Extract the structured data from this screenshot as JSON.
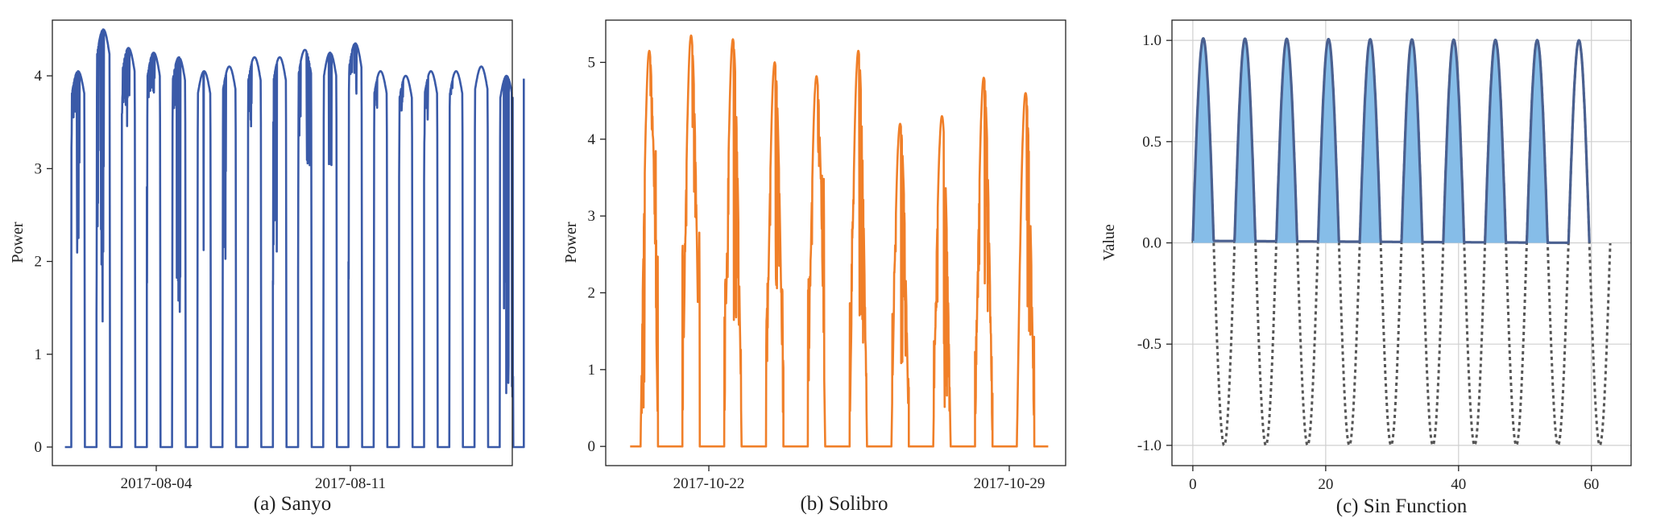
{
  "chart_data": [
    {
      "type": "line",
      "title": "(a) Sanyo",
      "xlabel": "",
      "ylabel": "Power",
      "x_tick_labels": [
        "2017-08-04",
        "2017-08-11"
      ],
      "y_ticks": [
        0,
        1,
        2,
        3,
        4
      ],
      "ylim": [
        -0.2,
        4.6
      ],
      "xlim": [
        "2017-07-30 12:00",
        "2017-08-17 18:00"
      ],
      "grid": false,
      "series": [
        {
          "color": "#3a5aa8",
          "x": [
            "2017-07-31 08:00",
            "2017-07-31 12:00",
            "2017-07-31 16:00",
            "2017-08-01 08:00",
            "2017-08-01 12:00",
            "2017-08-01 16:00",
            "2017-08-02 08:00",
            "2017-08-02 12:00",
            "2017-08-02 16:00",
            "2017-08-03 08:00",
            "2017-08-03 12:00",
            "2017-08-03 16:00",
            "2017-08-04 08:00",
            "2017-08-04 12:00",
            "2017-08-04 16:00",
            "2017-08-05 08:00",
            "2017-08-05 12:00",
            "2017-08-05 16:00",
            "2017-08-06 08:00",
            "2017-08-06 12:00",
            "2017-08-06 16:00",
            "2017-08-07 08:00",
            "2017-08-07 12:00",
            "2017-08-07 16:00",
            "2017-08-08 08:00",
            "2017-08-08 12:00",
            "2017-08-08 16:00",
            "2017-08-09 08:00",
            "2017-08-09 12:00",
            "2017-08-09 16:00",
            "2017-08-10 08:00",
            "2017-08-10 12:00",
            "2017-08-10 16:00",
            "2017-08-11 08:00",
            "2017-08-11 12:00",
            "2017-08-11 16:00",
            "2017-08-12 08:00",
            "2017-08-12 12:00",
            "2017-08-12 16:00",
            "2017-08-13 08:00",
            "2017-08-13 12:00",
            "2017-08-13 16:00",
            "2017-08-14 08:00",
            "2017-08-14 12:00",
            "2017-08-14 16:00",
            "2017-08-15 08:00",
            "2017-08-15 12:00",
            "2017-08-15 16:00",
            "2017-08-16 08:00",
            "2017-08-16 12:00",
            "2017-08-16 16:00",
            "2017-08-17 08:00",
            "2017-08-17 12:00"
          ],
          "y": [
            3.45,
            1.9,
            4.05,
            1.85,
            1.2,
            4.5,
            3.6,
            3.4,
            4.3,
            3.7,
            3.75,
            4.25,
            3.65,
            1.45,
            4.2,
            4.0,
            1.5,
            4.05,
            1.7,
            3.9,
            4.1,
            3.4,
            4.2,
            4.2,
            2.05,
            4.2,
            4.2,
            2.85,
            4.28,
            3.0,
            4.2,
            3.0,
            4.25,
            4.0,
            3.8,
            4.35,
            3.6,
            3.9,
            4.05,
            3.6,
            3.85,
            4.0,
            3.5,
            3.9,
            4.05,
            3.8,
            3.9,
            4.05,
            3.9,
            4.1,
            4.0,
            4.0,
            0.0
          ]
        }
      ]
    },
    {
      "type": "line",
      "title": "(b) Solibro",
      "xlabel": "",
      "ylabel": "Power",
      "x_tick_labels": [
        "2017-10-22",
        "2017-10-29"
      ],
      "y_ticks": [
        0,
        1,
        2,
        3,
        4,
        5
      ],
      "ylim": [
        -0.25,
        5.55
      ],
      "xlim": [
        "2017-10-19 12:00",
        "2017-10-30 12:00"
      ],
      "grid": false,
      "series": [
        {
          "color": "#f07f28",
          "x": [
            "2017-10-20 09:00",
            "2017-10-20 12:00",
            "2017-10-20 15:00",
            "2017-10-21 09:00",
            "2017-10-21 12:00",
            "2017-10-21 15:00",
            "2017-10-22 09:00",
            "2017-10-22 12:00",
            "2017-10-22 15:00",
            "2017-10-23 09:00",
            "2017-10-23 12:00",
            "2017-10-23 15:00",
            "2017-10-24 09:00",
            "2017-10-24 12:00",
            "2017-10-24 15:00",
            "2017-10-25 09:00",
            "2017-10-25 12:00",
            "2017-10-25 15:00",
            "2017-10-26 09:00",
            "2017-10-26 12:00",
            "2017-10-26 15:00",
            "2017-10-27 09:00",
            "2017-10-27 12:00",
            "2017-10-27 15:00",
            "2017-10-28 09:00",
            "2017-10-28 12:00",
            "2017-10-28 15:00",
            "2017-10-29 09:00",
            "2017-10-29 12:00",
            "2017-10-29 15:00"
          ],
          "y": [
            0.35,
            5.15,
            4.0,
            2.7,
            5.35,
            2.8,
            2.2,
            5.3,
            1.4,
            2.2,
            5.0,
            2.05,
            2.5,
            4.82,
            3.6,
            3.0,
            5.15,
            1.3,
            2.4,
            4.2,
            1.0,
            1.5,
            4.3,
            0.3,
            1.9,
            4.8,
            1.5,
            4.55,
            4.6,
            1.45
          ]
        }
      ]
    },
    {
      "type": "area",
      "title": "(c) Sin Function",
      "xlabel": "",
      "ylabel": "Value",
      "x_ticks": [
        0,
        20,
        40,
        60
      ],
      "y_ticks": [
        "-1.0",
        "-0.5",
        "0.0",
        "0.5",
        "1.0"
      ],
      "xlim": [
        -3.14,
        65.97
      ],
      "ylim": [
        -1.1,
        1.1
      ],
      "grid": true,
      "series": [
        {
          "kind": "sin(x)",
          "x_range": [
            0,
            62.83
          ],
          "style": "dotted",
          "color": "#555555"
        },
        {
          "kind": "max(sin(x), 0)",
          "x_range": [
            0,
            59.69
          ],
          "style": "filled",
          "color": "#4a6090",
          "fill": "#86bde8"
        }
      ]
    }
  ]
}
